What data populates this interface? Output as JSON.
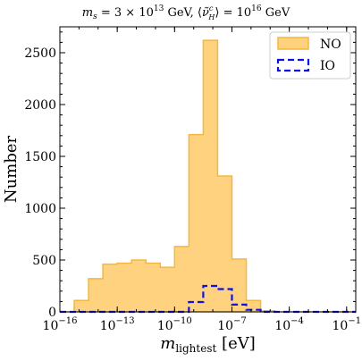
{
  "chart_data": {
    "type": "histogram",
    "title": "m_s = 3 × 10^13 GeV, ⟨ν̃ᶜ_H⟩ = 10^16 GeV",
    "title_parts": {
      "pre": "m",
      "pre_sub": "s",
      "mid": " = 3 × 10",
      "mid_sup": "13",
      "mid2": " GeV, ⟨",
      "nu": "ν̃",
      "nu_sup": "c",
      "nu_sub": "H",
      "post": "⟩ = 10",
      "post_sup": "16",
      "unit": " GeV"
    },
    "xlabel": {
      "main": "m",
      "sub": "lightest",
      "unit": " [eV]"
    },
    "ylabel": "Number",
    "x_scale": "log",
    "x_range": [
      1e-16,
      0.3
    ],
    "ylim": [
      0,
      2750
    ],
    "x_ticks": [
      {
        "base": "10",
        "exp": "−16",
        "value": 1e-16
      },
      {
        "base": "10",
        "exp": "−13",
        "value": 1e-13
      },
      {
        "base": "10",
        "exp": "−10",
        "value": 1e-10
      },
      {
        "base": "10",
        "exp": "−7",
        "value": 1e-07
      },
      {
        "base": "10",
        "exp": "−4",
        "value": 0.0001
      },
      {
        "base": "10",
        "exp": "−1",
        "value": 0.1
      }
    ],
    "y_ticks": [
      0,
      500,
      1000,
      1500,
      2000,
      2500
    ],
    "bin_edges_log10": [
      -16,
      -15.25,
      -14.5,
      -13.75,
      -13,
      -12.25,
      -11.5,
      -10.75,
      -10,
      -9.25,
      -8.5,
      -7.75,
      -7,
      -6.25,
      -5.5,
      -4.75,
      -4,
      -3.25,
      -2.5,
      -1.75,
      -1,
      -0.5
    ],
    "series": [
      {
        "name": "NO",
        "style": "filled",
        "color": "#ffd27f",
        "edge_color": "#f5b73c",
        "counts": [
          0,
          110,
          320,
          460,
          470,
          500,
          470,
          430,
          630,
          1710,
          2620,
          1310,
          510,
          110,
          10,
          0,
          0,
          0,
          0,
          0,
          0
        ]
      },
      {
        "name": "IO",
        "style": "dashed-step",
        "color": "#1010e0",
        "counts": [
          0,
          0,
          0,
          0,
          0,
          0,
          0,
          0,
          0,
          95,
          250,
          220,
          70,
          20,
          0,
          0,
          0,
          0,
          0,
          0,
          0
        ]
      }
    ],
    "legend": {
      "position": "top-right",
      "entries": [
        "NO",
        "IO"
      ]
    },
    "grid": false
  }
}
